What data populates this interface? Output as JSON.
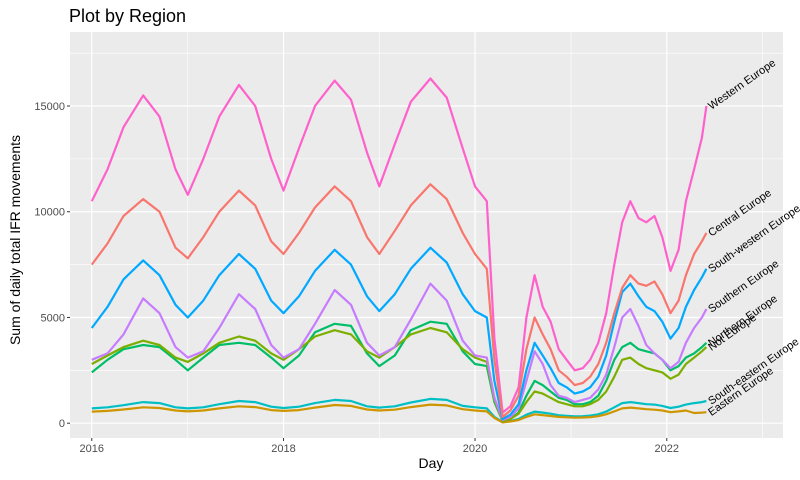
{
  "chart_data": {
    "type": "line",
    "title": "Plot by Region",
    "xlabel": "Day",
    "ylabel": "Sum of daily total IFR movements",
    "x_ticks": [
      "2016",
      "2018",
      "2020",
      "2022"
    ],
    "y_ticks": [
      "0",
      "5000",
      "10000",
      "15000"
    ],
    "x_range": [
      "2015-10-10",
      "2023-03-20"
    ],
    "ylim": [
      -700,
      18500
    ],
    "grid": true,
    "legend": "direct labels at line ends",
    "x": [
      "2016-01-01",
      "2016-03-01",
      "2016-05-01",
      "2016-07-15",
      "2016-09-15",
      "2016-11-15",
      "2017-01-01",
      "2017-03-01",
      "2017-05-01",
      "2017-07-15",
      "2017-09-15",
      "2017-11-15",
      "2018-01-01",
      "2018-03-01",
      "2018-05-01",
      "2018-07-15",
      "2018-09-15",
      "2018-11-15",
      "2019-01-01",
      "2019-03-01",
      "2019-05-01",
      "2019-07-15",
      "2019-09-15",
      "2019-11-15",
      "2020-01-01",
      "2020-02-15",
      "2020-03-15",
      "2020-04-15",
      "2020-05-15",
      "2020-06-15",
      "2020-07-15",
      "2020-08-15",
      "2020-09-15",
      "2020-10-15",
      "2020-11-15",
      "2020-12-15",
      "2021-01-15",
      "2021-02-15",
      "2021-03-15",
      "2021-04-15",
      "2021-05-15",
      "2021-06-15",
      "2021-07-15",
      "2021-08-15",
      "2021-09-15",
      "2021-10-15",
      "2021-11-15",
      "2021-12-15",
      "2022-01-15",
      "2022-02-15",
      "2022-03-15",
      "2022-04-15",
      "2022-05-15",
      "2022-06-01"
    ],
    "series": [
      {
        "name": "Western Europe",
        "color": "#FF61CC",
        "values": [
          10500,
          12000,
          14000,
          15500,
          14500,
          12000,
          10800,
          12500,
          14500,
          16000,
          15000,
          12500,
          11000,
          13000,
          15000,
          16200,
          15300,
          12800,
          11200,
          13200,
          15200,
          16300,
          15400,
          13000,
          11200,
          10500,
          4000,
          500,
          800,
          1700,
          5000,
          7000,
          5500,
          4800,
          3500,
          3000,
          2500,
          2600,
          3000,
          3800,
          5200,
          7500,
          9500,
          10500,
          9700,
          9500,
          9800,
          8800,
          7200,
          8200,
          10500,
          12000,
          13500,
          15000
        ]
      },
      {
        "name": "Central Europe",
        "color": "#F8766D",
        "values": [
          7500,
          8500,
          9800,
          10600,
          10000,
          8300,
          7800,
          8800,
          10000,
          11000,
          10300,
          8600,
          8000,
          9000,
          10200,
          11200,
          10500,
          8800,
          8000,
          9100,
          10300,
          11300,
          10600,
          9000,
          8000,
          7300,
          3000,
          300,
          600,
          1300,
          3500,
          5000,
          4200,
          3500,
          2500,
          2200,
          1800,
          1900,
          2200,
          2800,
          3800,
          5200,
          6400,
          7000,
          6600,
          6500,
          6700,
          6100,
          5200,
          5800,
          7000,
          8000,
          8600,
          9000
        ]
      },
      {
        "name": "South-western Europe",
        "color": "#00A9FF",
        "values": [
          4500,
          5500,
          6800,
          7700,
          7000,
          5600,
          5000,
          5800,
          7000,
          8000,
          7300,
          5800,
          5200,
          6000,
          7200,
          8200,
          7500,
          6000,
          5300,
          6100,
          7300,
          8300,
          7600,
          6100,
          5300,
          5000,
          2000,
          200,
          400,
          900,
          2500,
          3800,
          3200,
          2600,
          1900,
          1700,
          1400,
          1500,
          1700,
          2200,
          3200,
          4800,
          6200,
          6600,
          6000,
          5500,
          5300,
          4800,
          4000,
          4500,
          5500,
          6300,
          6900,
          7300
        ]
      },
      {
        "name": "Southern Europe",
        "color": "#C77CFF",
        "values": [
          3000,
          3300,
          4200,
          5900,
          5200,
          3600,
          3100,
          3400,
          4500,
          6100,
          5400,
          3700,
          3100,
          3500,
          4700,
          6300,
          5600,
          3800,
          3200,
          3600,
          4900,
          6600,
          5800,
          3900,
          3200,
          3100,
          1200,
          150,
          300,
          700,
          2000,
          3400,
          2800,
          1800,
          1300,
          1200,
          1000,
          1100,
          1200,
          1600,
          2300,
          3600,
          5000,
          5400,
          4600,
          3700,
          3300,
          3000,
          2600,
          2900,
          3800,
          4500,
          5000,
          5400
        ]
      },
      {
        "name": "Northern Europe",
        "color": "#00BE67",
        "values": [
          2400,
          3000,
          3500,
          3700,
          3600,
          3000,
          2500,
          3100,
          3700,
          3800,
          3700,
          3100,
          2600,
          3200,
          4300,
          4700,
          4600,
          3300,
          2700,
          3200,
          4400,
          4800,
          4700,
          3400,
          2800,
          2700,
          1000,
          100,
          200,
          500,
          1300,
          2000,
          1800,
          1500,
          1200,
          1100,
          900,
          900,
          1000,
          1300,
          2000,
          3000,
          3600,
          3800,
          3500,
          3400,
          3300,
          3000,
          2500,
          2700,
          3100,
          3300,
          3600,
          3800
        ]
      },
      {
        "name": "Not Europe",
        "color": "#7CAE00",
        "values": [
          2800,
          3200,
          3600,
          3900,
          3700,
          3100,
          2900,
          3300,
          3800,
          4100,
          3900,
          3300,
          3000,
          3500,
          4100,
          4400,
          4200,
          3400,
          3100,
          3600,
          4200,
          4500,
          4300,
          3500,
          3100,
          2900,
          1100,
          100,
          200,
          450,
          1000,
          1500,
          1400,
          1200,
          1000,
          900,
          800,
          800,
          900,
          1100,
          1500,
          2200,
          3000,
          3100,
          2800,
          2600,
          2500,
          2400,
          2100,
          2300,
          2800,
          3100,
          3400,
          3600
        ]
      },
      {
        "name": "South-eastern Europe",
        "color": "#00BFC4",
        "values": [
          700,
          750,
          850,
          1000,
          950,
          750,
          700,
          750,
          900,
          1050,
          1000,
          780,
          720,
          780,
          950,
          1100,
          1050,
          800,
          740,
          800,
          980,
          1150,
          1100,
          820,
          750,
          700,
          300,
          50,
          100,
          200,
          400,
          550,
          500,
          450,
          380,
          350,
          320,
          330,
          360,
          420,
          550,
          750,
          950,
          1000,
          950,
          900,
          880,
          820,
          720,
          780,
          880,
          950,
          1000,
          1050
        ]
      },
      {
        "name": "Eastern Europe",
        "color": "#CD9600",
        "values": [
          550,
          580,
          650,
          750,
          720,
          600,
          560,
          600,
          700,
          800,
          760,
          620,
          580,
          620,
          740,
          860,
          820,
          650,
          600,
          640,
          760,
          880,
          840,
          660,
          600,
          560,
          250,
          40,
          80,
          150,
          300,
          420,
          380,
          340,
          300,
          280,
          260,
          270,
          290,
          330,
          420,
          560,
          700,
          740,
          700,
          660,
          640,
          600,
          520,
          560,
          600,
          480,
          500,
          520
        ]
      }
    ]
  }
}
